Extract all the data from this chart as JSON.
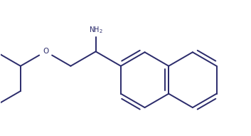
{
  "bg_color": "#ffffff",
  "line_color": "#2b2b6b",
  "line_width": 1.4,
  "figsize": [
    3.53,
    1.91
  ],
  "dpi": 100,
  "nh2_label": "NH$_2$",
  "o_label": "O"
}
